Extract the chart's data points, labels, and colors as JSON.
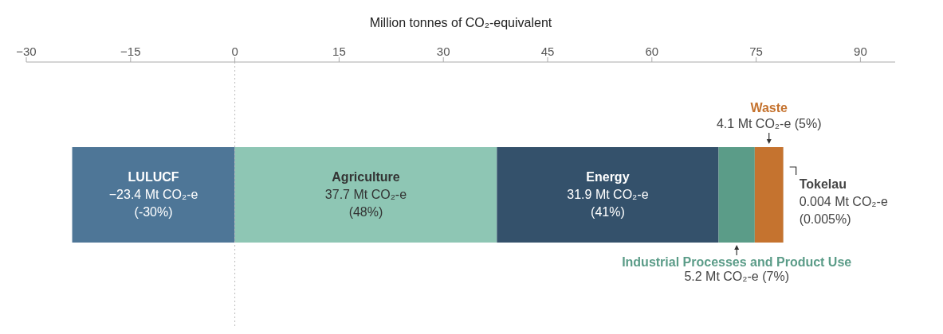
{
  "chart_data": {
    "type": "bar",
    "orientation": "horizontal",
    "stacked": true,
    "xlabel": "Million tonnes of CO₂-equivalent",
    "categories": [
      null
    ],
    "xlim": [
      -30,
      95
    ],
    "xticks": [
      -30,
      -15,
      0,
      15,
      30,
      45,
      60,
      75,
      90
    ],
    "ref_lines": [
      {
        "axis": "x",
        "value": 0,
        "color": "#bbbbbb",
        "line_style": "dotted"
      }
    ],
    "series": [
      {
        "name": "LULUCF",
        "color": "#4e7697",
        "values": [
          -23.4
        ],
        "value_labels": [
          "−23.4 Mt CO₂-e (-30%)"
        ]
      },
      {
        "name": "Agriculture",
        "color": "#8ec6b4",
        "values": [
          37.7
        ],
        "value_labels": [
          "37.7 Mt CO₂-e (48%)"
        ]
      },
      {
        "name": "Energy",
        "color": "#34516b",
        "values": [
          31.9
        ],
        "value_labels": [
          "31.9 Mt CO₂-e (41%)"
        ]
      },
      {
        "name": "Industrial Processes and Product Use",
        "color": "#5b9c88",
        "values": [
          5.2
        ],
        "value_labels": [
          "5.2 Mt CO₂-e (7%)"
        ]
      },
      {
        "name": "Waste",
        "color": "#c5732f",
        "values": [
          4.1
        ],
        "value_labels": [
          "4.1 Mt CO₂-e (5%)"
        ]
      },
      {
        "name": "Tokelau",
        "color": "#222222",
        "values": [
          0.004
        ],
        "value_labels": [
          "0.004 Mt CO₂-e (0.005%)"
        ]
      }
    ]
  }
}
